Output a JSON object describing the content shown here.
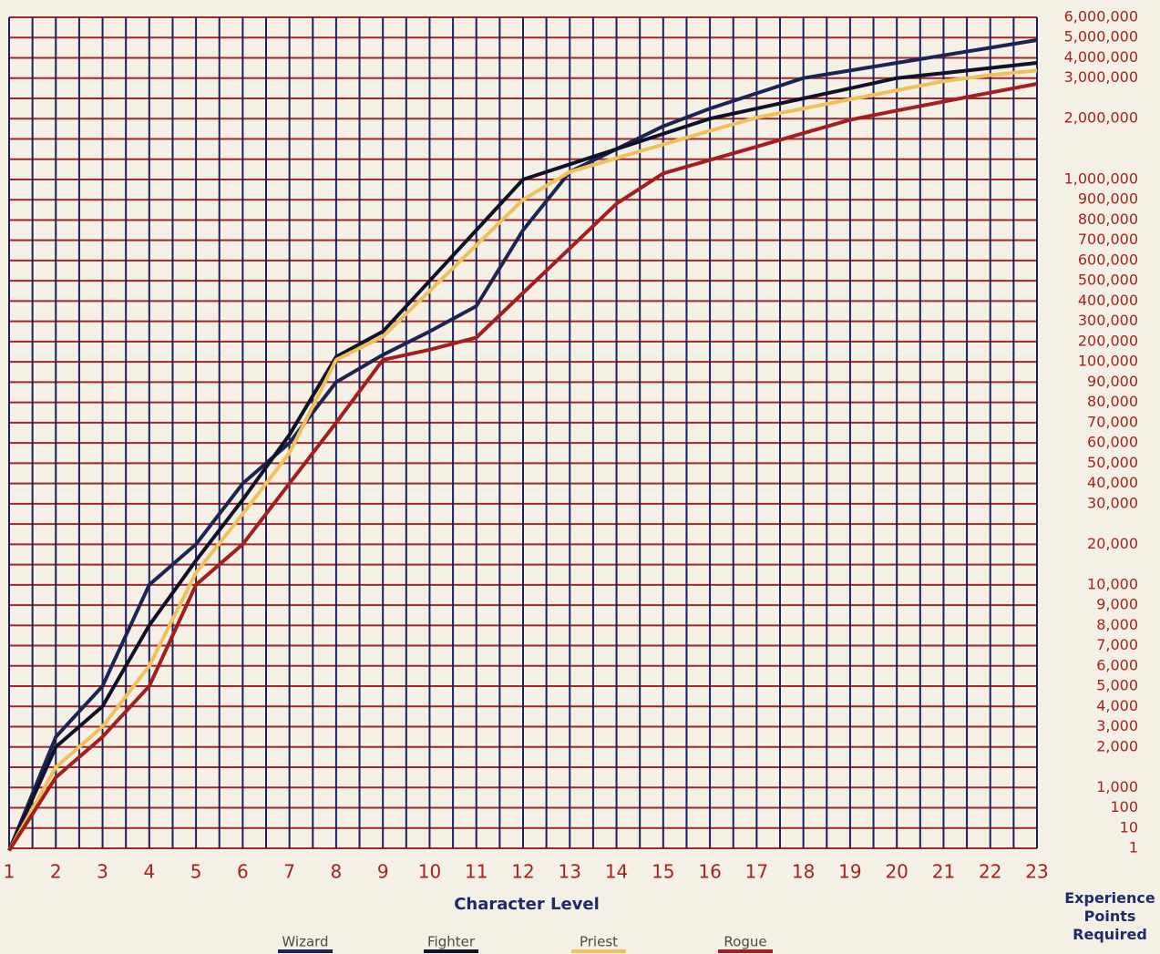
{
  "chart_data": {
    "type": "line",
    "x_label": "Character Level",
    "y_label": "Experience Points Required",
    "x": [
      1,
      2,
      3,
      4,
      5,
      6,
      7,
      8,
      9,
      10,
      11,
      12,
      13,
      14,
      15,
      16,
      17,
      18,
      19,
      20,
      21,
      22,
      23
    ],
    "xlim": [
      1,
      23
    ],
    "xticks": [
      1,
      2,
      3,
      4,
      5,
      6,
      7,
      8,
      9,
      10,
      11,
      12,
      13,
      14,
      15,
      16,
      17,
      18,
      19,
      20,
      21,
      22,
      23
    ],
    "ylim": [
      1,
      6000000
    ],
    "yticks": [
      1,
      10,
      100,
      {
        "value": 1000,
        "label": "1,000"
      },
      {
        "value": 2000,
        "label": "2,000"
      },
      {
        "value": 3000,
        "label": "3,000"
      },
      {
        "value": 4000,
        "label": "4,000"
      },
      {
        "value": 5000,
        "label": "5,000"
      },
      {
        "value": 6000,
        "label": "6,000"
      },
      {
        "value": 7000,
        "label": "7,000"
      },
      {
        "value": 8000,
        "label": "8,000"
      },
      {
        "value": 9000,
        "label": "9,000"
      },
      {
        "value": 10000,
        "label": "10,000"
      },
      {
        "value": 20000,
        "label": "20,000"
      },
      {
        "value": 30000,
        "label": "30,000"
      },
      {
        "value": 40000,
        "label": "40,000"
      },
      {
        "value": 50000,
        "label": "50,000"
      },
      {
        "value": 60000,
        "label": "60,000"
      },
      {
        "value": 70000,
        "label": "70,000"
      },
      {
        "value": 80000,
        "label": "80,000"
      },
      {
        "value": 90000,
        "label": "90,000"
      },
      {
        "value": 100000,
        "label": "100,000"
      },
      {
        "value": 200000,
        "label": "200,000"
      },
      {
        "value": 300000,
        "label": "300,000"
      },
      {
        "value": 400000,
        "label": "400,000"
      },
      {
        "value": 500000,
        "label": "500,000"
      },
      {
        "value": 600000,
        "label": "600,000"
      },
      {
        "value": 700000,
        "label": "700,000"
      },
      {
        "value": 800000,
        "label": "800,000"
      },
      {
        "value": 900000,
        "label": "900,000"
      },
      {
        "value": 1000000,
        "label": "1,000,000"
      },
      {
        "value": 2000000,
        "label": "2,000,000"
      },
      {
        "value": 3000000,
        "label": "3,000,000"
      },
      {
        "value": 4000000,
        "label": "4,000,000"
      },
      {
        "value": 5000000,
        "label": "5,000,000"
      },
      {
        "value": 6000000,
        "label": "6,000,000"
      }
    ],
    "grid": true,
    "legend": "bottom",
    "series": [
      {
        "name": "Wizard",
        "color": "#1c2454",
        "values": [
          0,
          2500,
          5000,
          10000,
          20000,
          40000,
          60000,
          90000,
          135000,
          250000,
          375000,
          750000,
          1125000,
          1500000,
          1875000,
          2250000,
          2625000,
          3000000,
          3375000,
          3750000,
          4125000,
          4500000,
          4875000
        ]
      },
      {
        "name": "Fighter",
        "color": "#0f1228",
        "values": [
          0,
          2000,
          4000,
          8000,
          16000,
          32000,
          64000,
          125000,
          250000,
          500000,
          750000,
          1000000,
          1250000,
          1500000,
          1750000,
          2000000,
          2250000,
          2500000,
          2750000,
          3000000,
          3250000,
          3500000,
          3750000
        ]
      },
      {
        "name": "Priest",
        "color": "#f0c05a",
        "values": [
          0,
          1500,
          3000,
          6000,
          13000,
          27500,
          55000,
          110000,
          225000,
          450000,
          675000,
          900000,
          1125000,
          1350000,
          1575000,
          1800000,
          2025000,
          2250000,
          2475000,
          2700000,
          2925000,
          3150000,
          3375000
        ]
      },
      {
        "name": "Rogue",
        "color": "#a31e1e",
        "values": [
          0,
          1250,
          2500,
          5000,
          10000,
          20000,
          40000,
          70000,
          110000,
          160000,
          220000,
          440000,
          660000,
          880000,
          1100000,
          1320000,
          1540000,
          1760000,
          1980000,
          2200000,
          2420000,
          2640000,
          2860000
        ]
      }
    ]
  }
}
